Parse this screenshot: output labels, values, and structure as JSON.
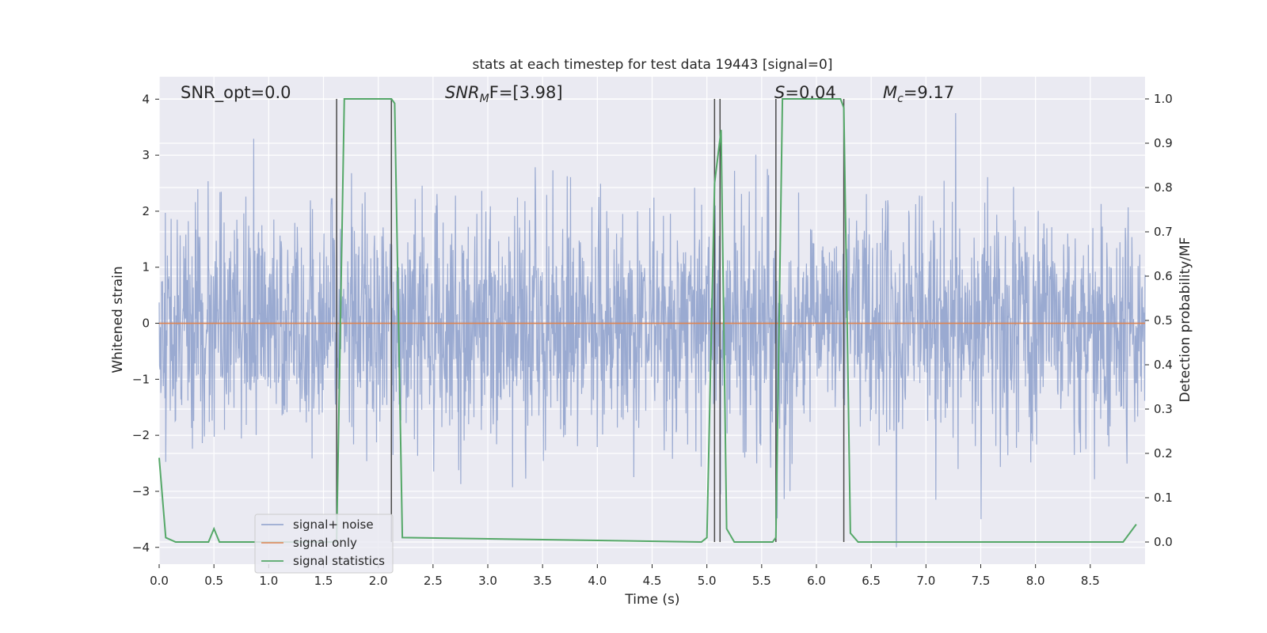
{
  "chart_data": {
    "type": "line",
    "title": "stats at each timestep for test data 19443 [signal=0]",
    "xlabel": "Time (s)",
    "ylabel": "Whitened strain",
    "y2label": "Detection probability/MF",
    "xlim": [
      0,
      9.0
    ],
    "ylim": [
      -4.3,
      4.4
    ],
    "y2lim": [
      -0.05,
      1.05
    ],
    "xticks": [
      "0.0",
      "0.5",
      "1.0",
      "1.5",
      "2.0",
      "2.5",
      "3.0",
      "3.5",
      "4.0",
      "4.5",
      "5.0",
      "5.5",
      "6.0",
      "6.5",
      "7.0",
      "7.5",
      "8.0",
      "8.5"
    ],
    "yticks": [
      "−4",
      "−3",
      "−2",
      "−1",
      "0",
      "1",
      "2",
      "3",
      "4"
    ],
    "y2ticks": [
      "0.0",
      "0.1",
      "0.2",
      "0.3",
      "0.4",
      "0.5",
      "0.6",
      "0.7",
      "0.8",
      "0.9",
      "1.0"
    ],
    "grid": true,
    "legend_position": "lower-left",
    "colors": {
      "background": "#eaeaf2",
      "grid": "#ffffff",
      "noise": "#8c9fcb",
      "signal_only": "#dd8452",
      "statistics": "#55a868",
      "vlines": "#4a4a4a"
    },
    "annotations": {
      "snr_opt": "SNR_opt=0.0",
      "snr_mf_main": "SNR",
      "snr_mf_sub": "M",
      "snr_mf_rest": "F=[3.98]",
      "s_var": "S",
      "s_rest": "=0.04",
      "mc_main": "M",
      "mc_sub": "c",
      "mc_rest": "=9.17"
    },
    "series": [
      {
        "name": "signal+ noise",
        "axis": "left",
        "style": "dense-noise",
        "typical_range": [
          -1.8,
          1.8
        ],
        "peak_range": [
          -4.0,
          3.75
        ]
      },
      {
        "name": "signal only",
        "axis": "left",
        "x": [
          0,
          9.0
        ],
        "y": [
          0,
          0
        ]
      },
      {
        "name": "signal statistics",
        "axis": "right",
        "x": [
          0,
          0.06,
          0.15,
          0.45,
          0.5,
          0.55,
          0.9,
          1.62,
          1.69,
          2.12,
          2.15,
          2.22,
          4.95,
          5.0,
          5.07,
          5.13,
          5.18,
          5.25,
          5.6,
          5.63,
          5.69,
          6.22,
          6.25,
          6.31,
          6.38,
          8.8,
          8.92
        ],
        "y": [
          0.19,
          0.01,
          0.0,
          0.0,
          0.03,
          0.0,
          0.0,
          0.0,
          1.0,
          1.0,
          0.99,
          0.01,
          0.0,
          0.01,
          0.81,
          0.93,
          0.03,
          0.0,
          0.0,
          0.01,
          1.0,
          1.0,
          0.98,
          0.02,
          0.0,
          0.0,
          0.04
        ]
      }
    ],
    "vlines": [
      1.62,
      2.12,
      5.07,
      5.12,
      5.63,
      6.25
    ]
  }
}
